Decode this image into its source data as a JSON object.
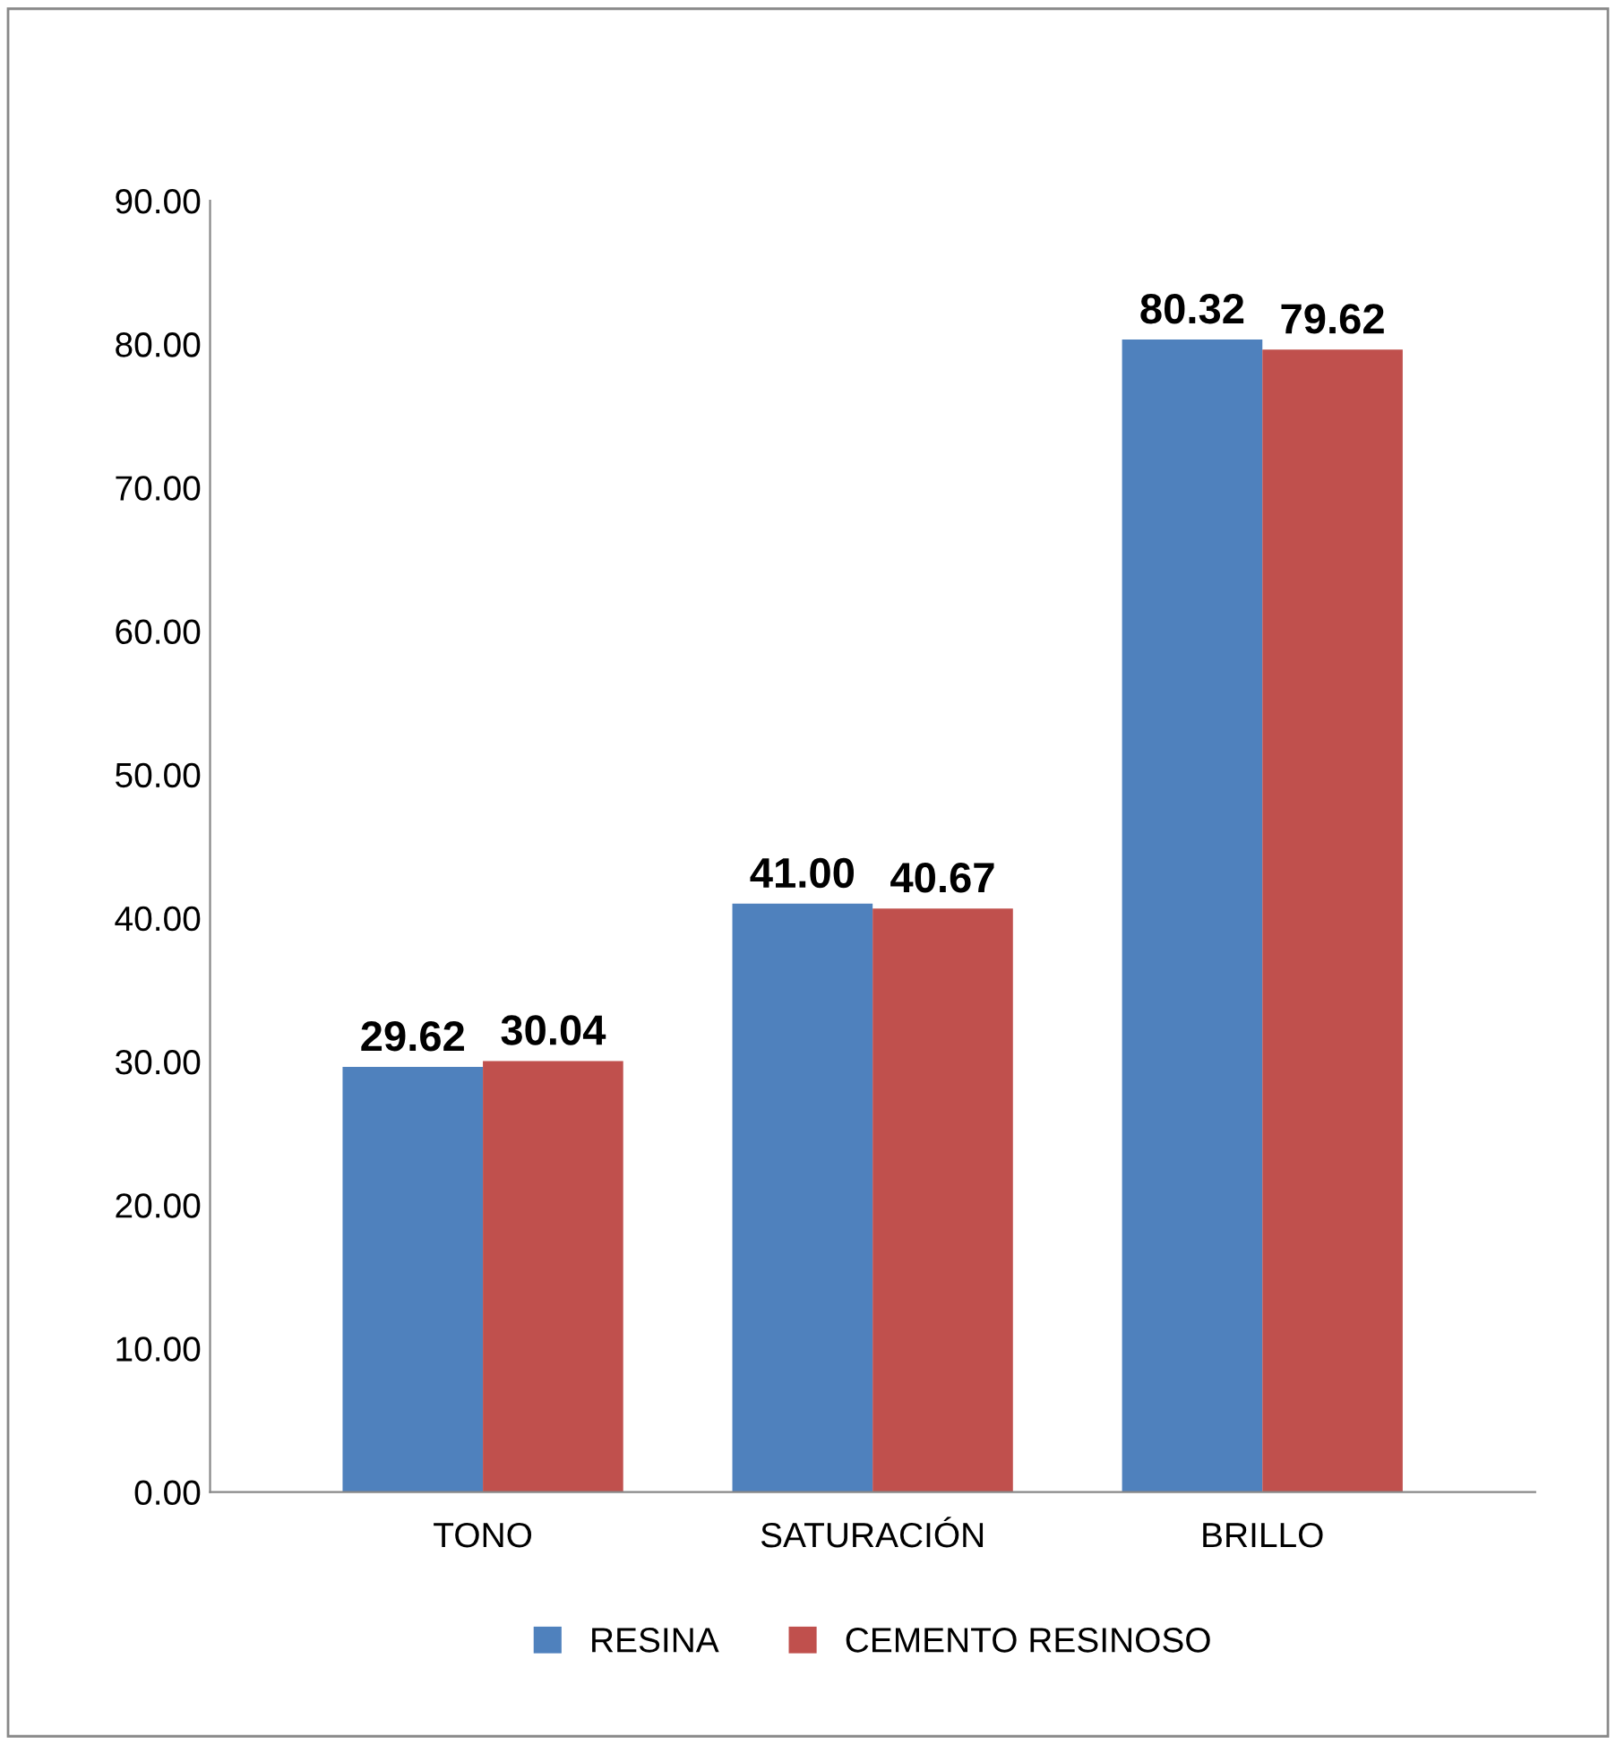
{
  "chart_data": {
    "type": "bar",
    "categories": [
      "TONO",
      "SATURACIÓN",
      "BRILLO"
    ],
    "series": [
      {
        "name": "RESINA",
        "color": "#4f81bd",
        "values": [
          29.62,
          41.0,
          80.32
        ],
        "value_labels": [
          "29.62",
          "41.00",
          "80.32"
        ]
      },
      {
        "name": "CEMENTO RESINOSO",
        "color": "#c0504d",
        "values": [
          30.04,
          40.67,
          79.62
        ],
        "value_labels": [
          "30.04",
          "40.67",
          "79.62"
        ]
      }
    ],
    "ylim": [
      0,
      90
    ],
    "yticks": [
      {
        "value": 0,
        "label": "0.00"
      },
      {
        "value": 10,
        "label": "10.00"
      },
      {
        "value": 20,
        "label": "20.00"
      },
      {
        "value": 30,
        "label": "30.00"
      },
      {
        "value": 40,
        "label": "40.00"
      },
      {
        "value": 50,
        "label": "50.00"
      },
      {
        "value": 60,
        "label": "60.00"
      },
      {
        "value": 70,
        "label": "70.00"
      },
      {
        "value": 80,
        "label": "80.00"
      },
      {
        "value": 90,
        "label": "90.00"
      }
    ],
    "grid": false,
    "legend": "bottom"
  }
}
